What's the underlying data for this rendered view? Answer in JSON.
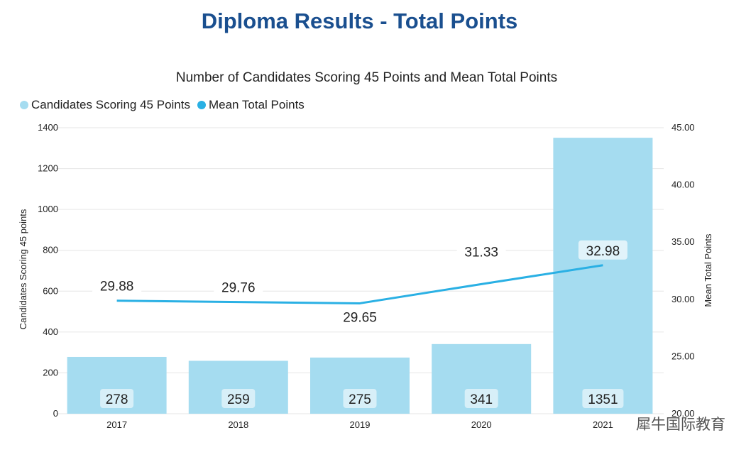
{
  "page": {
    "title": "Diploma Results - Total Points",
    "watermark": "犀牛国际教育"
  },
  "chart_data": {
    "type": "bar",
    "title": "Number of Candidates Scoring 45 Points and Mean Total Points",
    "categories": [
      "2017",
      "2018",
      "2019",
      "2020",
      "2021"
    ],
    "series": [
      {
        "name": "Candidates Scoring 45 Points",
        "type": "bar",
        "axis": "left",
        "color": "#a5dcf0",
        "values": [
          278,
          259,
          275,
          341,
          1351
        ],
        "labels": [
          "278",
          "259",
          "275",
          "341",
          "1351"
        ]
      },
      {
        "name": "Mean Total Points",
        "type": "line",
        "axis": "right",
        "color": "#2ab0e4",
        "values": [
          29.88,
          29.76,
          29.65,
          31.33,
          32.98
        ],
        "labels": [
          "29.88",
          "29.76",
          "29.65",
          "31.33",
          "32.98"
        ]
      }
    ],
    "ylabel": "Candidates Scoring 45 points",
    "y2label": "Mean Total Points",
    "ylim": [
      0,
      1400
    ],
    "y2lim": [
      20,
      45
    ],
    "yticks": [
      "0",
      "200",
      "400",
      "600",
      "800",
      "1000",
      "1200",
      "1400"
    ],
    "y2ticks": [
      "20.00",
      "25.00",
      "30.00",
      "35.00",
      "40.00",
      "45.00"
    ],
    "grid": true,
    "legend_position": "top-left"
  }
}
